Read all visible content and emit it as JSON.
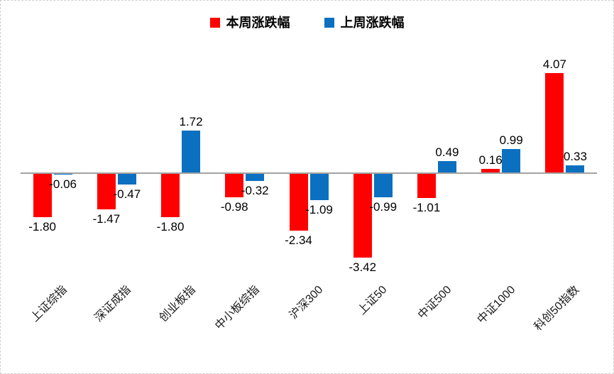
{
  "chart_data": {
    "type": "bar",
    "title": "",
    "categories": [
      "上证综指",
      "深证成指",
      "创业板指",
      "中小板综指",
      "沪深300",
      "上证50",
      "中证500",
      "中证1000",
      "科创50指数"
    ],
    "series": [
      {
        "name": "本周涨跌幅",
        "color": "#FF0000",
        "values": [
          -1.8,
          -1.47,
          -1.8,
          -0.98,
          -2.34,
          -3.42,
          -1.01,
          0.16,
          4.07
        ]
      },
      {
        "name": "上周涨跌幅",
        "color": "#0B70C0",
        "values": [
          -0.06,
          -0.47,
          1.72,
          -0.32,
          -1.09,
          -0.99,
          0.49,
          0.99,
          0.33
        ]
      }
    ],
    "data_labels": [
      "-1.80",
      "-1.47",
      "-1.80",
      "-0.98",
      "-2.34",
      "-3.42",
      "-1.01",
      "0.16",
      "4.07",
      "-0.06",
      "-0.47",
      "1.72",
      "-0.32",
      "-1.09",
      "-0.99",
      "0.49",
      "0.99",
      "0.33"
    ],
    "legend_position": "top",
    "grid": false,
    "y_axis_visible": false,
    "ylim": [
      -4.2,
      4.9
    ],
    "axis_color": "#A2A2A2",
    "label_color": "#000000"
  }
}
